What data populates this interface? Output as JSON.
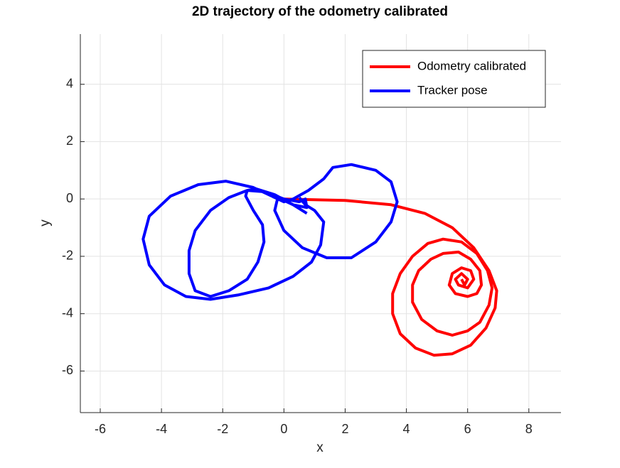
{
  "chart_data": {
    "type": "line",
    "title": "2D trajectory of the odometry calibrated",
    "x_label": "x",
    "y_label": "y",
    "xlim": [
      -6.65,
      9.05
    ],
    "ylim": [
      -7.45,
      5.75
    ],
    "xticks": [
      -6,
      -4,
      -2,
      0,
      2,
      4,
      6,
      8
    ],
    "yticks": [
      -6,
      -4,
      -2,
      0,
      2,
      4
    ],
    "grid": true,
    "legend_position": "upper right",
    "series": [
      {
        "name": "Odometry calibrated",
        "color": "#ff0000",
        "x": [
          0,
          2,
          3.5,
          4.6,
          5.5,
          6.2,
          6.7,
          6.95,
          6.9,
          6.6,
          6.1,
          5.5,
          4.9,
          4.3,
          3.8,
          3.55,
          3.55,
          3.8,
          4.2,
          4.7,
          5.2,
          5.8,
          6.3,
          6.65,
          6.8,
          6.7,
          6.4,
          6,
          5.5,
          5,
          4.5,
          4.2,
          4.2,
          4.4,
          4.8,
          5.2,
          5.7,
          6.1,
          6.4,
          6.45,
          6.3,
          6,
          5.6,
          5.4,
          5.5,
          5.8,
          6.1,
          6.2,
          6,
          5.7,
          5.6,
          5.8,
          6,
          5.9,
          5.8
        ],
        "y": [
          0,
          -0.05,
          -0.2,
          -0.5,
          -1,
          -1.7,
          -2.5,
          -3.2,
          -3.8,
          -4.5,
          -5.1,
          -5.4,
          -5.45,
          -5.2,
          -4.7,
          -4,
          -3.3,
          -2.6,
          -2,
          -1.55,
          -1.4,
          -1.5,
          -1.9,
          -2.5,
          -3.1,
          -3.7,
          -4.3,
          -4.6,
          -4.75,
          -4.6,
          -4.2,
          -3.6,
          -3,
          -2.5,
          -2.1,
          -1.9,
          -1.85,
          -2.1,
          -2.5,
          -3,
          -3.3,
          -3.4,
          -3.3,
          -3,
          -2.6,
          -2.4,
          -2.5,
          -2.8,
          -3.1,
          -3,
          -2.8,
          -2.6,
          -2.8,
          -3,
          -2.8
        ]
      },
      {
        "name": "Tracker pose",
        "color": "#0000ff",
        "x": [
          0.75,
          0.3,
          -0.3,
          -0.9,
          -1.2,
          -1.25,
          -1,
          -0.7,
          -0.65,
          -0.85,
          -1.2,
          -1.8,
          -2.4,
          -2.9,
          -3.1,
          -3.1,
          -2.9,
          -2.4,
          -1.8,
          -1.2,
          -0.6,
          0,
          0.5,
          0.7,
          0.75,
          0.3,
          -0.2,
          -0.3,
          0,
          0.6,
          1.4,
          2.2,
          3,
          3.5,
          3.7,
          3.5,
          3,
          2.2,
          1.6,
          1.3,
          0.8,
          0.3,
          0,
          -0.4,
          -1,
          -1.9,
          -2.8,
          -3.7,
          -4.4,
          -4.6,
          -4.4,
          -3.9,
          -3.2,
          -2.4,
          -1.5,
          -0.5,
          0.3,
          0.9,
          1.2,
          1.3,
          1,
          0.7,
          0.5
        ],
        "y": [
          -0.5,
          -0.2,
          0.15,
          0.35,
          0.3,
          0.1,
          -0.4,
          -0.9,
          -1.5,
          -2.2,
          -2.8,
          -3.2,
          -3.4,
          -3.2,
          -2.6,
          -1.8,
          -1.1,
          -0.4,
          0.05,
          0.3,
          0.25,
          0,
          -0.1,
          0,
          -0.3,
          -0.2,
          0.05,
          -0.4,
          -1.1,
          -1.7,
          -2.05,
          -2.05,
          -1.5,
          -0.8,
          -0.1,
          0.6,
          1,
          1.2,
          1.1,
          0.7,
          0.3,
          0,
          -0.1,
          0.1,
          0.4,
          0.62,
          0.5,
          0.1,
          -0.6,
          -1.4,
          -2.3,
          -3,
          -3.4,
          -3.5,
          -3.35,
          -3.1,
          -2.7,
          -2.2,
          -1.6,
          -0.8,
          -0.4,
          -0.2,
          0.05
        ]
      }
    ]
  }
}
